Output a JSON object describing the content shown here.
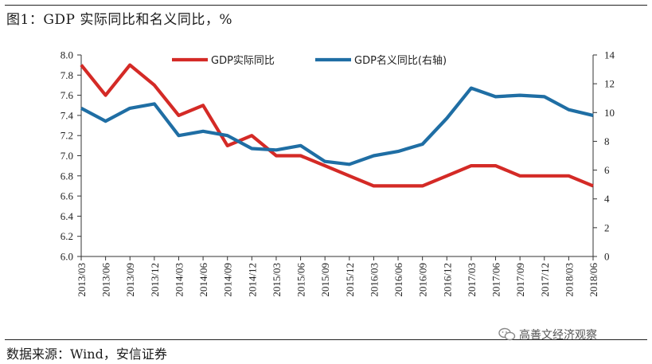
{
  "figure": {
    "title": "图1：GDP 实际同比和名义同比，%",
    "source": "数据来源：Wind，安信证券",
    "watermark": "高善文经济观察"
  },
  "chart_data": {
    "type": "line",
    "title": "图1：GDP 实际同比和名义同比，%",
    "categories": [
      "2013/03",
      "2013/06",
      "2013/09",
      "2013/12",
      "2014/03",
      "2014/06",
      "2014/09",
      "2014/12",
      "2015/03",
      "2015/06",
      "2015/09",
      "2015/12",
      "2016/03",
      "2016/06",
      "2016/09",
      "2016/12",
      "2017/03",
      "2017/06",
      "2017/09",
      "2017/12",
      "2018/03",
      "2018/06"
    ],
    "series": [
      {
        "name": "GDP实际同比",
        "axis": "left",
        "color": "#d42a26",
        "values": [
          7.9,
          7.6,
          7.9,
          7.7,
          7.4,
          7.5,
          7.1,
          7.2,
          7.0,
          7.0,
          6.9,
          6.8,
          6.7,
          6.7,
          6.7,
          6.8,
          6.9,
          6.9,
          6.8,
          6.8,
          6.8,
          6.7
        ]
      },
      {
        "name": "GDP名义同比(右轴)",
        "axis": "right",
        "color": "#1f6ea4",
        "values": [
          10.3,
          9.4,
          10.3,
          10.6,
          8.4,
          8.7,
          8.4,
          7.5,
          7.4,
          7.7,
          6.6,
          6.4,
          7.0,
          7.3,
          7.8,
          9.6,
          11.7,
          11.1,
          11.2,
          11.1,
          10.2,
          9.8
        ]
      }
    ],
    "y_left": {
      "min": 6.0,
      "max": 8.0,
      "step": 0.2,
      "ticks": [
        "6.0",
        "6.2",
        "6.4",
        "6.6",
        "6.8",
        "7.0",
        "7.2",
        "7.4",
        "7.6",
        "7.8",
        "8.0"
      ]
    },
    "y_right": {
      "min": 0,
      "max": 14,
      "step": 2,
      "ticks": [
        "0",
        "2",
        "4",
        "6",
        "8",
        "10",
        "12",
        "14"
      ]
    },
    "legend": [
      "GDP实际同比",
      "GDP名义同比(右轴)"
    ],
    "legend_position": "top"
  }
}
